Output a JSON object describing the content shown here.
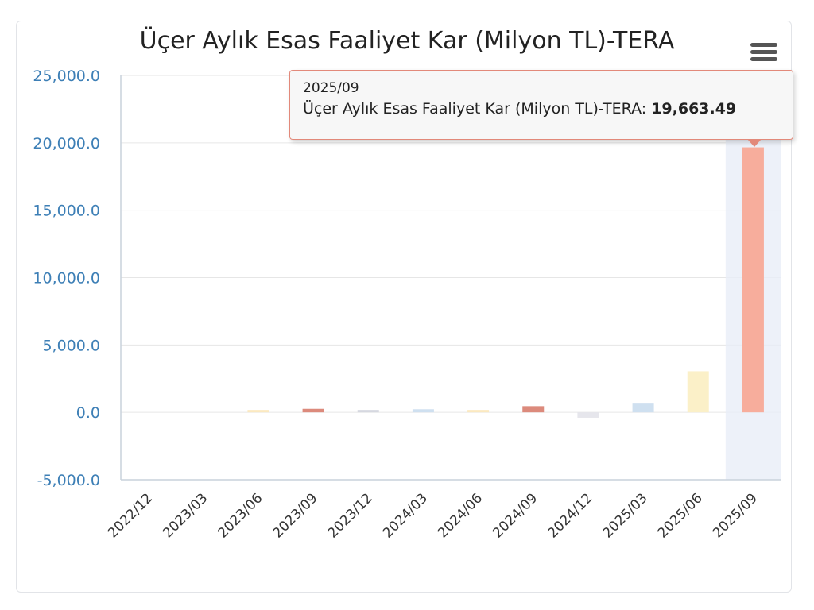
{
  "chart_data": {
    "type": "bar",
    "title": "Üçer Aylık Esas Faaliyet Kar (Milyon TL)-TERA",
    "categories": [
      "2022/12",
      "2023/03",
      "2023/06",
      "2023/09",
      "2023/12",
      "2024/03",
      "2024/06",
      "2024/09",
      "2024/12",
      "2025/03",
      "2025/06",
      "2025/09"
    ],
    "values": [
      0,
      0,
      90,
      260,
      40,
      230,
      130,
      460,
      -400,
      650,
      3050,
      19663.49
    ],
    "colors": [
      "#f9d9a8",
      "#f9d9a8",
      "#fbe9c0",
      "#dc8a7c",
      "#d6d8e0",
      "#cfe0f0",
      "#fbe9c0",
      "#dc8a7c",
      "#e6e6ec",
      "#cfe0f0",
      "#fbf0c8",
      "#f7ad9c"
    ],
    "ylim": [
      -5000,
      25000
    ],
    "yticks": [
      -5000,
      0,
      5000,
      10000,
      15000,
      20000,
      25000
    ],
    "ytick_labels": [
      "-5,000.0",
      "0.0",
      "5,000.0",
      "10,000.0",
      "15,000.0",
      "20,000.0",
      "25,000.0"
    ],
    "xlabel": "",
    "ylabel": "",
    "grid": true,
    "highlighted_index": 11
  },
  "tooltip": {
    "period": "2025/09",
    "series_label": "Üçer Aylık Esas Faaliyet Kar (Milyon TL)-TERA: ",
    "value": "19,663.49"
  },
  "menu": {
    "icon": "hamburger-menu-icon"
  }
}
